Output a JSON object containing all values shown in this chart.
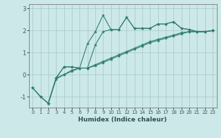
{
  "xlabel": "Humidex (Indice chaleur)",
  "bg_color": "#cce8e8",
  "grid_color": "#aacccc",
  "line_color": "#2e7d70",
  "xlim": [
    -0.5,
    23.5
  ],
  "ylim": [
    -1.5,
    3.2
  ],
  "yticks": [
    -1,
    0,
    1,
    2,
    3
  ],
  "xticks": [
    0,
    1,
    2,
    3,
    4,
    5,
    6,
    7,
    8,
    9,
    10,
    11,
    12,
    13,
    14,
    15,
    16,
    17,
    18,
    19,
    20,
    21,
    22,
    23
  ],
  "series": [
    {
      "x": [
        0,
        1,
        2,
        3,
        4,
        5,
        6,
        7,
        8,
        9,
        10,
        11,
        12,
        13,
        14,
        15,
        16,
        17,
        18,
        19,
        20,
        21,
        22,
        23
      ],
      "y": [
        -0.6,
        -1.0,
        -1.3,
        -0.15,
        0.35,
        0.35,
        0.3,
        0.3,
        1.35,
        1.95,
        2.05,
        2.05,
        2.6,
        2.1,
        2.1,
        2.1,
        2.3,
        2.3,
        2.4,
        2.1,
        2.05,
        1.95,
        1.95,
        2.0
      ]
    },
    {
      "x": [
        0,
        1,
        2,
        3,
        4,
        5,
        6,
        7,
        8,
        9,
        10,
        11,
        12,
        13,
        14,
        15,
        16,
        17,
        18,
        19,
        20,
        21,
        22,
        23
      ],
      "y": [
        -0.6,
        -1.0,
        -1.3,
        -0.15,
        0.35,
        0.35,
        0.3,
        1.4,
        1.95,
        2.7,
        2.05,
        2.05,
        2.6,
        2.1,
        2.1,
        2.1,
        2.3,
        2.3,
        2.4,
        2.1,
        2.05,
        1.95,
        1.95,
        2.0
      ]
    },
    {
      "x": [
        0,
        1,
        2,
        3,
        4,
        5,
        6,
        7,
        8,
        9,
        10,
        11,
        12,
        13,
        14,
        15,
        16,
        17,
        18,
        19,
        20,
        21,
        22,
        23
      ],
      "y": [
        -0.6,
        -1.0,
        -1.3,
        -0.2,
        0.0,
        0.2,
        0.3,
        0.3,
        0.4,
        0.55,
        0.7,
        0.85,
        1.0,
        1.15,
        1.3,
        1.45,
        1.55,
        1.65,
        1.75,
        1.85,
        1.95,
        1.95,
        1.95,
        2.0
      ]
    },
    {
      "x": [
        2,
        3,
        4,
        5,
        6,
        7,
        8,
        9,
        10,
        11,
        12,
        13,
        14,
        15,
        16,
        17,
        18,
        19,
        20,
        21,
        22,
        23
      ],
      "y": [
        -1.3,
        -0.15,
        0.0,
        0.15,
        0.3,
        0.3,
        0.45,
        0.6,
        0.75,
        0.9,
        1.05,
        1.2,
        1.35,
        1.5,
        1.6,
        1.7,
        1.8,
        1.9,
        1.95,
        1.95,
        1.95,
        2.0
      ]
    }
  ]
}
